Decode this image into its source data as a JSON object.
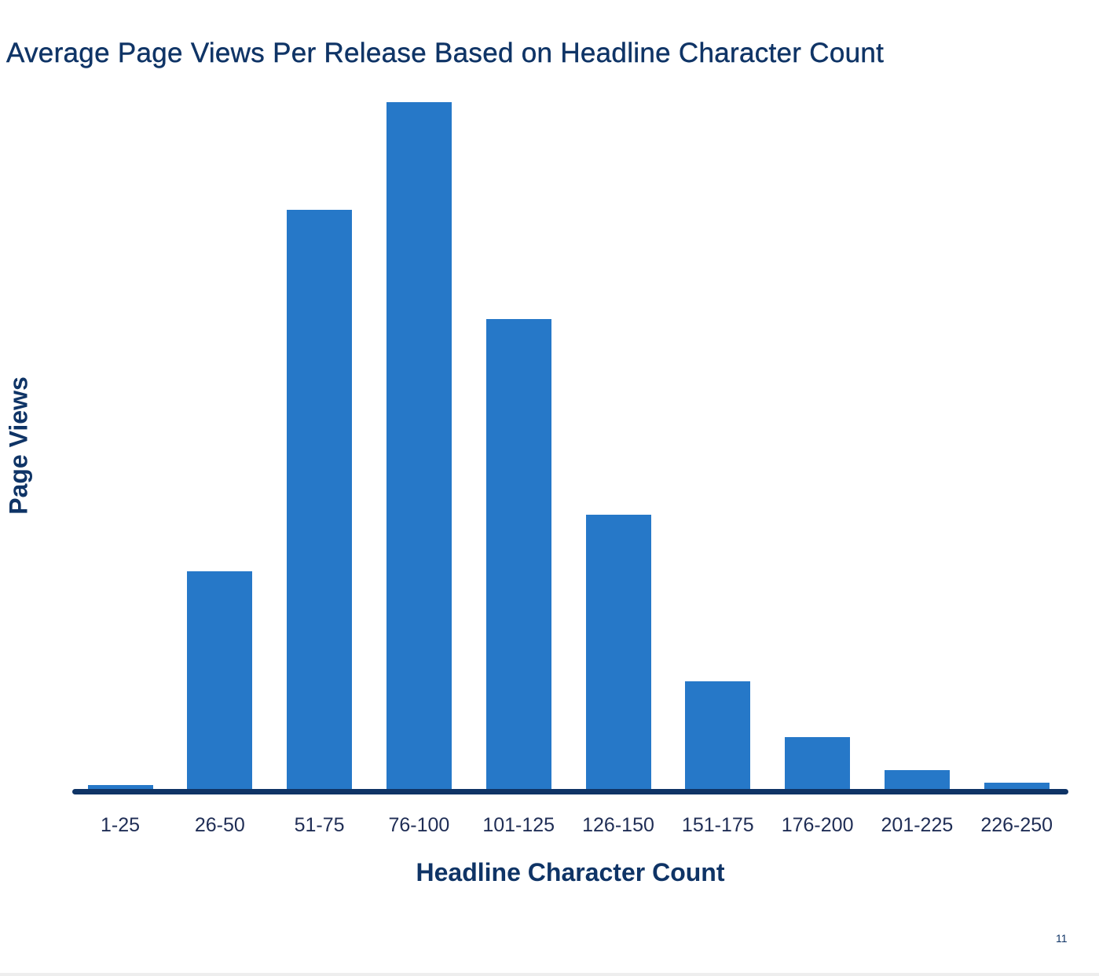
{
  "chart_data": {
    "type": "bar",
    "title": "Average Page Views Per Release Based on Headline Character Count",
    "xlabel": "Headline Character Count",
    "ylabel": "Page Views",
    "categories": [
      "1-25",
      "26-50",
      "51-75",
      "76-100",
      "101-125",
      "126-150",
      "151-175",
      "176-200",
      "201-225",
      "226-250"
    ],
    "values": [
      0.8,
      31.8,
      84.4,
      100,
      68.5,
      40.1,
      15.9,
      7.8,
      3.0,
      1.1
    ],
    "value_units": "relative (tallest bar = 100); no y-axis ticks shown",
    "ylim": [
      0,
      100
    ],
    "grid": false,
    "legend": null,
    "bar_color": "#2678c8",
    "axis_color": "#0f3466"
  },
  "page": {
    "number": "11"
  }
}
